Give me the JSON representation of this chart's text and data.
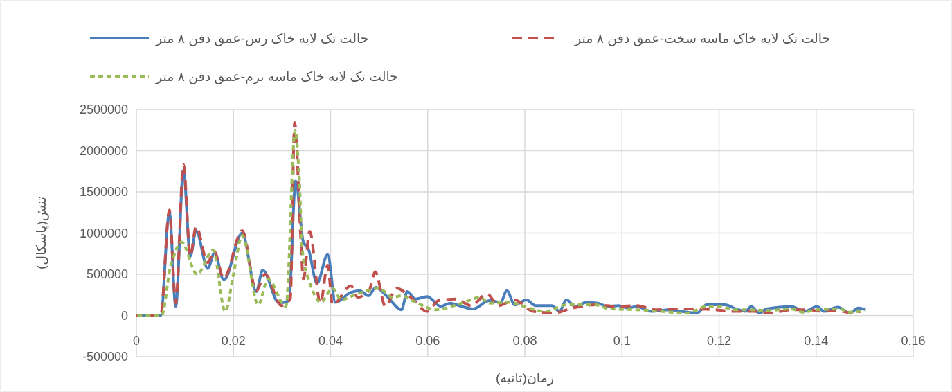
{
  "chart_data": {
    "type": "line",
    "xlabel": "زمان(ثانیه)",
    "ylabel": "تنش(پاسکال)",
    "xlim": [
      0,
      0.16
    ],
    "xticks": [
      0,
      0.02,
      0.04,
      0.06,
      0.08,
      0.1,
      0.12,
      0.14,
      0.16
    ],
    "ylim": [
      -500000,
      2500000
    ],
    "yticks": [
      -500000,
      0,
      500000,
      1000000,
      1500000,
      2000000,
      2500000
    ],
    "grid": true,
    "legend": "top",
    "marker": "none",
    "series": [
      {
        "name": "حالت تک لایه خاک رس-عمق دفن ۸ متر",
        "color": "#4a7ebb",
        "line_style": "solid",
        "x": [
          0,
          0.005,
          0.0068,
          0.0081,
          0.0097,
          0.0111,
          0.0123,
          0.0147,
          0.0161,
          0.018,
          0.0218,
          0.0247,
          0.026,
          0.0294,
          0.0314,
          0.0328,
          0.0344,
          0.0354,
          0.0372,
          0.0394,
          0.041,
          0.0442,
          0.046,
          0.0478,
          0.0493,
          0.0518,
          0.0546,
          0.0558,
          0.0575,
          0.0599,
          0.0627,
          0.0646,
          0.067,
          0.0693,
          0.0727,
          0.075,
          0.0763,
          0.0779,
          0.0803,
          0.0822,
          0.0856,
          0.0871,
          0.0886,
          0.0903,
          0.0927,
          0.095,
          0.097,
          0.0993,
          0.1012,
          0.1031,
          0.106,
          0.1098,
          0.1121,
          0.1155,
          0.1174,
          0.1212,
          0.1235,
          0.1255,
          0.1266,
          0.1283,
          0.1298,
          0.1349,
          0.1376,
          0.1402,
          0.1416,
          0.1445,
          0.1469,
          0.1487,
          0.1502
        ],
        "values": [
          0,
          0,
          1250000,
          110000,
          1760000,
          720000,
          1030000,
          570000,
          760000,
          430000,
          1000000,
          290000,
          550000,
          150000,
          180000,
          1630000,
          890000,
          810000,
          390000,
          740000,
          160000,
          280000,
          300000,
          240000,
          340000,
          220000,
          70000,
          290000,
          200000,
          230000,
          110000,
          150000,
          110000,
          80000,
          180000,
          160000,
          300000,
          130000,
          190000,
          120000,
          120000,
          50000,
          190000,
          110000,
          160000,
          150000,
          110000,
          120000,
          90000,
          110000,
          50000,
          70000,
          50000,
          30000,
          130000,
          130000,
          80000,
          50000,
          110000,
          30000,
          80000,
          110000,
          50000,
          110000,
          50000,
          100000,
          30000,
          90000,
          70000
        ]
      },
      {
        "name": "حالت تک لایه خاک ماسه سخت-عمق دفن ۸ متر",
        "color": "#c0504d",
        "line_style": "dashed",
        "x": [
          0,
          0.005,
          0.0068,
          0.0081,
          0.0097,
          0.0111,
          0.0123,
          0.0147,
          0.016,
          0.018,
          0.0218,
          0.0247,
          0.0265,
          0.0299,
          0.0317,
          0.0326,
          0.0338,
          0.0344,
          0.0357,
          0.0379,
          0.0394,
          0.0404,
          0.0442,
          0.0456,
          0.0479,
          0.0492,
          0.0513,
          0.0536,
          0.0565,
          0.0599,
          0.0622,
          0.0658,
          0.0689,
          0.0722,
          0.0746,
          0.0779,
          0.0817,
          0.086,
          0.0898,
          0.0945,
          0.0993,
          0.1031,
          0.107,
          0.1112,
          0.1145,
          0.1192,
          0.1226,
          0.1273,
          0.1306,
          0.1349,
          0.1383,
          0.1412,
          0.144,
          0.1477,
          0.1492
        ],
        "values": [
          0,
          0,
          1280000,
          150000,
          1830000,
          720000,
          1080000,
          640000,
          780000,
          450000,
          1030000,
          300000,
          500000,
          120000,
          200000,
          2340000,
          1000000,
          440000,
          1020000,
          150000,
          610000,
          130000,
          360000,
          220000,
          300000,
          530000,
          110000,
          330000,
          220000,
          50000,
          180000,
          200000,
          120000,
          260000,
          120000,
          190000,
          50000,
          30000,
          90000,
          130000,
          110000,
          120000,
          70000,
          80000,
          80000,
          70000,
          50000,
          50000,
          30000,
          70000,
          70000,
          50000,
          60000,
          30000,
          50000
        ]
      },
      {
        "name": "حالت تک لایه خاک ماسه نرم-عمق دفن ۸ متر",
        "color": "#9bbb59",
        "line_style": "dotted",
        "x": [
          0,
          0.0052,
          0.0071,
          0.0093,
          0.0125,
          0.0158,
          0.0183,
          0.02,
          0.0218,
          0.0251,
          0.0271,
          0.0308,
          0.0327,
          0.0335,
          0.0342,
          0.0351,
          0.038,
          0.0404,
          0.0422,
          0.0446,
          0.0475,
          0.0499,
          0.0528,
          0.0546,
          0.0575,
          0.0617,
          0.066,
          0.0684,
          0.0707,
          0.0727,
          0.077,
          0.0793,
          0.0841,
          0.0888,
          0.0945,
          0.0974,
          0.1031,
          0.1078,
          0.1135,
          0.1174,
          0.1202,
          0.1231,
          0.1259,
          0.1298,
          0.1349,
          0.1373,
          0.1402,
          0.1449,
          0.1469,
          0.1502
        ],
        "values": [
          0,
          0,
          610000,
          890000,
          500000,
          790000,
          50000,
          500000,
          970000,
          130000,
          440000,
          110000,
          2250000,
          1730000,
          780000,
          500000,
          160000,
          330000,
          190000,
          240000,
          300000,
          330000,
          220000,
          240000,
          160000,
          70000,
          130000,
          180000,
          220000,
          150000,
          160000,
          120000,
          50000,
          130000,
          130000,
          80000,
          70000,
          50000,
          30000,
          110000,
          110000,
          70000,
          70000,
          60000,
          80000,
          40000,
          70000,
          80000,
          40000,
          60000
        ]
      }
    ]
  }
}
